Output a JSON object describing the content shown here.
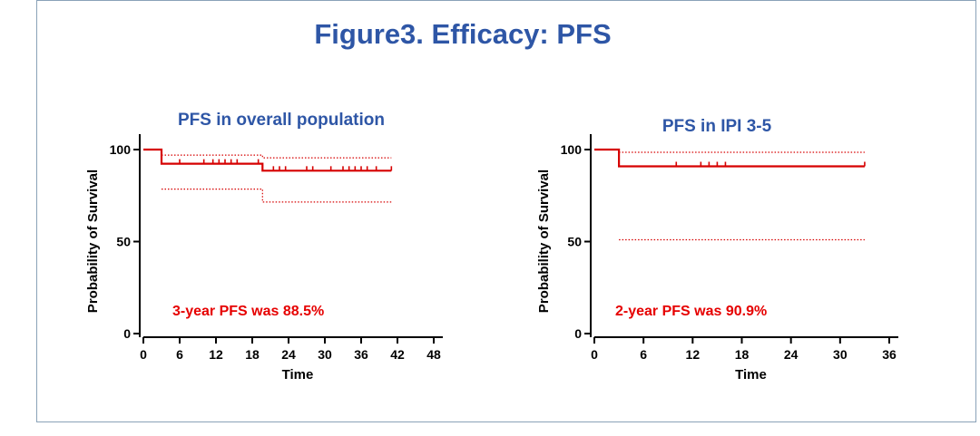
{
  "figure_title": "Figure3. Efficacy: PFS",
  "colors": {
    "title": "#2e56a6",
    "curve": "#d60000",
    "annotation": "#e60000",
    "frame": "#8aa2b8"
  },
  "chart_data": [
    {
      "type": "line",
      "title": "PFS in overall population",
      "xlabel": "Time",
      "ylabel": "Probability of Survival",
      "xlim": [
        0,
        48
      ],
      "ylim": [
        0,
        100
      ],
      "xticks": [
        0,
        6,
        12,
        18,
        24,
        30,
        36,
        42,
        48
      ],
      "yticks": [
        0,
        50,
        100
      ],
      "annotation": "3-year PFS was 88.5%",
      "series": [
        {
          "role": "estimate",
          "steps": [
            [
              0,
              100
            ],
            [
              3,
              100
            ],
            [
              3,
              92.3
            ],
            [
              19.7,
              92.3
            ],
            [
              19.7,
              88.5
            ],
            [
              41,
              88.5
            ]
          ]
        },
        {
          "role": "upper_ci",
          "steps": [
            [
              3,
              97
            ],
            [
              19.7,
              97
            ],
            [
              19.7,
              95.5
            ],
            [
              41,
              95.5
            ]
          ]
        },
        {
          "role": "lower_ci",
          "steps": [
            [
              3,
              78.5
            ],
            [
              19.7,
              78.5
            ],
            [
              19.7,
              71.5
            ],
            [
              41,
              71.5
            ]
          ]
        }
      ],
      "censor_ticks": [
        {
          "x": 6,
          "y": 92.3
        },
        {
          "x": 10,
          "y": 92.3
        },
        {
          "x": 11.5,
          "y": 92.3
        },
        {
          "x": 12.5,
          "y": 92.3
        },
        {
          "x": 13.5,
          "y": 92.3
        },
        {
          "x": 14.5,
          "y": 92.3
        },
        {
          "x": 15.5,
          "y": 92.3
        },
        {
          "x": 19,
          "y": 92.3
        },
        {
          "x": 21.5,
          "y": 88.5
        },
        {
          "x": 22.5,
          "y": 88.5
        },
        {
          "x": 23.5,
          "y": 88.5
        },
        {
          "x": 27,
          "y": 88.5
        },
        {
          "x": 28,
          "y": 88.5
        },
        {
          "x": 31,
          "y": 88.5
        },
        {
          "x": 33,
          "y": 88.5
        },
        {
          "x": 34,
          "y": 88.5
        },
        {
          "x": 35,
          "y": 88.5
        },
        {
          "x": 36,
          "y": 88.5
        },
        {
          "x": 37,
          "y": 88.5
        },
        {
          "x": 38.5,
          "y": 88.5
        },
        {
          "x": 41,
          "y": 88.5
        }
      ]
    },
    {
      "type": "line",
      "title": "PFS in IPI 3-5",
      "xlabel": "Time",
      "ylabel": "Probability of Survival",
      "xlim": [
        0,
        36
      ],
      "ylim": [
        0,
        100
      ],
      "xticks": [
        0,
        6,
        12,
        18,
        24,
        30,
        36
      ],
      "yticks": [
        0,
        50,
        100
      ],
      "annotation": "2-year PFS was 90.9%",
      "series": [
        {
          "role": "estimate",
          "steps": [
            [
              0,
              100
            ],
            [
              3,
              100
            ],
            [
              3,
              90.9
            ],
            [
              33,
              90.9
            ]
          ]
        },
        {
          "role": "upper_ci",
          "steps": [
            [
              3,
              98.5
            ],
            [
              33,
              98.5
            ]
          ]
        },
        {
          "role": "lower_ci",
          "steps": [
            [
              3,
              51
            ],
            [
              33,
              51
            ]
          ]
        }
      ],
      "censor_ticks": [
        {
          "x": 10,
          "y": 90.9
        },
        {
          "x": 13,
          "y": 90.9
        },
        {
          "x": 14,
          "y": 90.9
        },
        {
          "x": 15,
          "y": 90.9
        },
        {
          "x": 16,
          "y": 90.9
        },
        {
          "x": 33,
          "y": 90.9
        }
      ]
    }
  ]
}
